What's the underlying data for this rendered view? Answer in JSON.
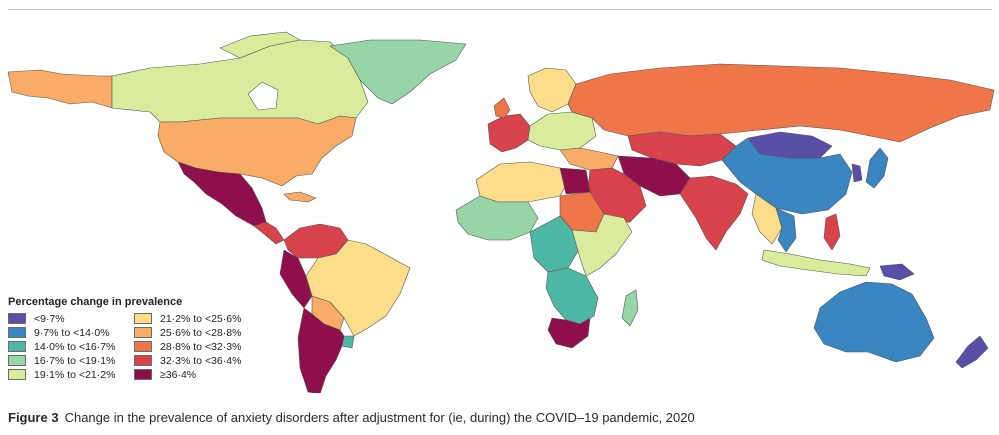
{
  "legend": {
    "title": "Percentage change in prevalence",
    "items": [
      {
        "label": "<9·7%",
        "color": "#5a4fa6"
      },
      {
        "label": "9·7% to <14·0%",
        "color": "#3a86c1"
      },
      {
        "label": "14·0% to <16·7%",
        "color": "#4fb8a4"
      },
      {
        "label": "16·7% to <19·1%",
        "color": "#98d5a6"
      },
      {
        "label": "19·1% to <21·2%",
        "color": "#d9ec9c"
      },
      {
        "label": "21·2% to <25·6%",
        "color": "#fbdd8a"
      },
      {
        "label": "25·6% to <28·8%",
        "color": "#f8ac66"
      },
      {
        "label": "28·8% to <32·3%",
        "color": "#ef7649"
      },
      {
        "label": "32·3% to <36·4%",
        "color": "#d8434b"
      },
      {
        "label": "≥36·4%",
        "color": "#8e0f4c"
      }
    ]
  },
  "caption": {
    "label": "Figure 3",
    "text": "Change in the prevalence of anxiety disorders after adjustment for (ie, during) the COVID–19 pandemic, 2020"
  }
}
